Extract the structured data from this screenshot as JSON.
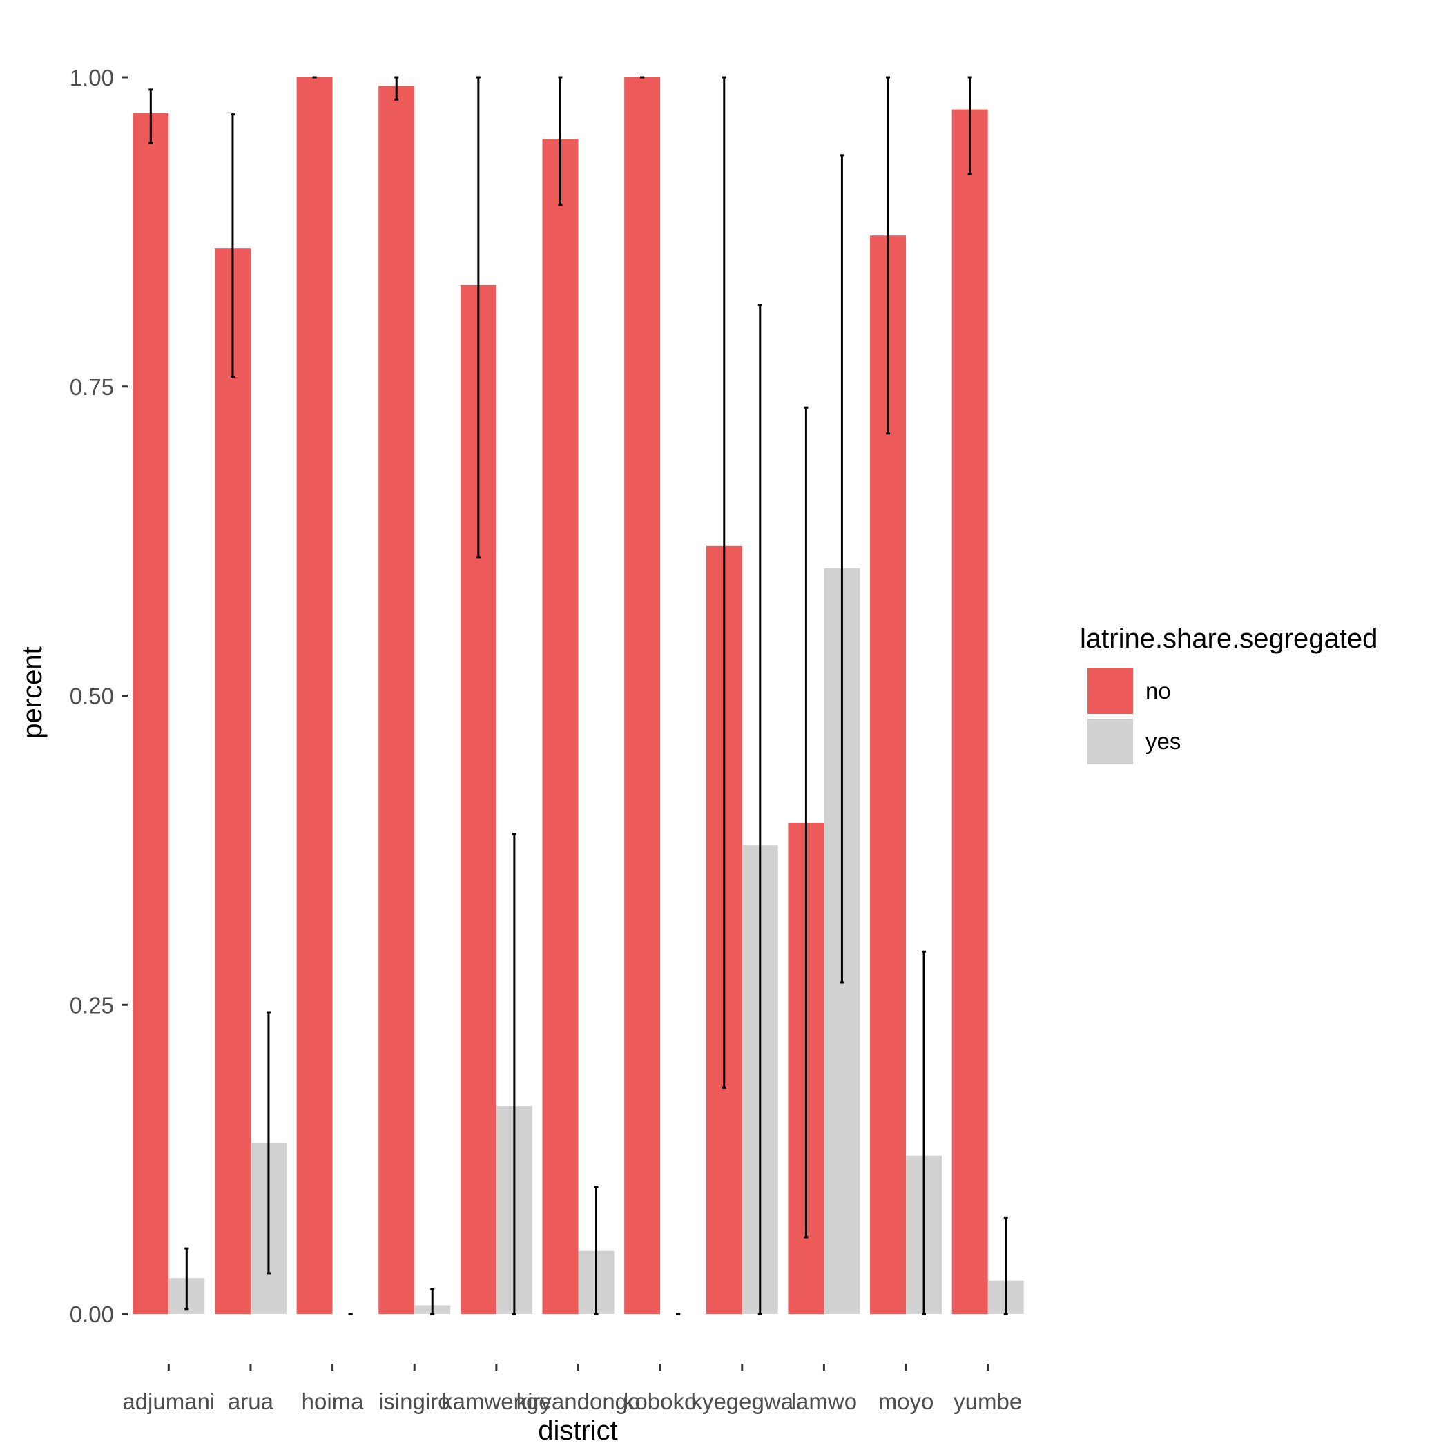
{
  "chart_data": {
    "type": "bar",
    "title": "",
    "xlabel": "district",
    "ylabel": "percent",
    "ylim": [
      0,
      1
    ],
    "y_ticks": [
      0,
      0.25,
      0.5,
      0.75,
      1.0
    ],
    "y_tick_labels": [
      "0.00",
      "0.25",
      "0.50",
      "0.75",
      "1.00"
    ],
    "grid": false,
    "legend": {
      "title": "latrine.share.segregated",
      "position": "right"
    },
    "categories": [
      "adjumani",
      "arua",
      "hoima",
      "isingiro",
      "kamwenge",
      "kiryandongo",
      "koboko",
      "kyegegwa",
      "lamwo",
      "moyo",
      "yumbe"
    ],
    "series": [
      {
        "name": "no",
        "color": "#ED5A5A",
        "values": [
          0.971,
          0.862,
          1.0,
          0.993,
          0.832,
          0.95,
          1.0,
          0.621,
          0.397,
          0.872,
          0.974
        ],
        "err_low": [
          0.947,
          0.758,
          1.0,
          0.982,
          0.612,
          0.897,
          1.0,
          0.183,
          0.062,
          0.712,
          0.922
        ],
        "err_high": [
          0.99,
          0.97,
          1.0,
          1.0,
          1.0,
          1.0,
          1.0,
          1.0,
          0.733,
          1.0,
          1.0
        ]
      },
      {
        "name": "yes",
        "color": "#D1D1D1",
        "values": [
          0.029,
          0.138,
          0.0,
          0.007,
          0.168,
          0.051,
          0.0,
          0.379,
          0.603,
          0.128,
          0.027
        ],
        "err_low": [
          0.004,
          0.033,
          0.0,
          0.0,
          0.0,
          0.0,
          0.0,
          0.0,
          0.268,
          0.0,
          0.0
        ],
        "err_high": [
          0.053,
          0.244,
          0.0,
          0.02,
          0.388,
          0.103,
          0.0,
          0.816,
          0.937,
          0.293,
          0.078
        ]
      }
    ]
  }
}
